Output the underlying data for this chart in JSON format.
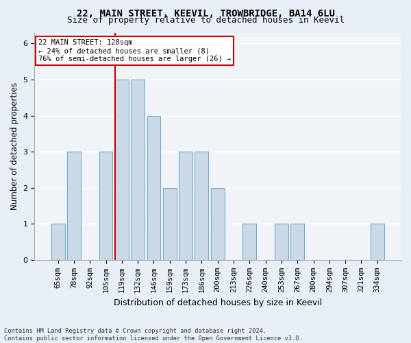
{
  "title": "22, MAIN STREET, KEEVIL, TROWBRIDGE, BA14 6LU",
  "subtitle": "Size of property relative to detached houses in Keevil",
  "xlabel": "Distribution of detached houses by size in Keevil",
  "ylabel": "Number of detached properties",
  "categories": [
    "65sqm",
    "78sqm",
    "92sqm",
    "105sqm",
    "119sqm",
    "132sqm",
    "146sqm",
    "159sqm",
    "173sqm",
    "186sqm",
    "200sqm",
    "213sqm",
    "226sqm",
    "240sqm",
    "253sqm",
    "267sqm",
    "280sqm",
    "294sqm",
    "307sqm",
    "321sqm",
    "334sqm"
  ],
  "values": [
    1,
    3,
    0,
    3,
    5,
    5,
    4,
    2,
    3,
    3,
    2,
    0,
    1,
    0,
    1,
    1,
    0,
    0,
    0,
    0,
    1
  ],
  "bar_color": "#c9d9e8",
  "bar_edge_color": "#7aaac8",
  "marker_index": 4,
  "marker_color": "#cc0000",
  "annotation_line1": "22 MAIN STREET: 120sqm",
  "annotation_line2": "← 24% of detached houses are smaller (8)",
  "annotation_line3": "76% of semi-detached houses are larger (26) →",
  "ylim": [
    0,
    6.3
  ],
  "yticks": [
    0,
    1,
    2,
    3,
    4,
    5,
    6
  ],
  "footer1": "Contains HM Land Registry data © Crown copyright and database right 2024.",
  "footer2": "Contains public sector information licensed under the Open Government Licence v3.0.",
  "bg_color": "#e8eef5",
  "plot_bg_color": "#f0f4f8",
  "title_fontsize": 10,
  "subtitle_fontsize": 9,
  "tick_fontsize": 7.5,
  "ylabel_fontsize": 8.5,
  "xlabel_fontsize": 9
}
